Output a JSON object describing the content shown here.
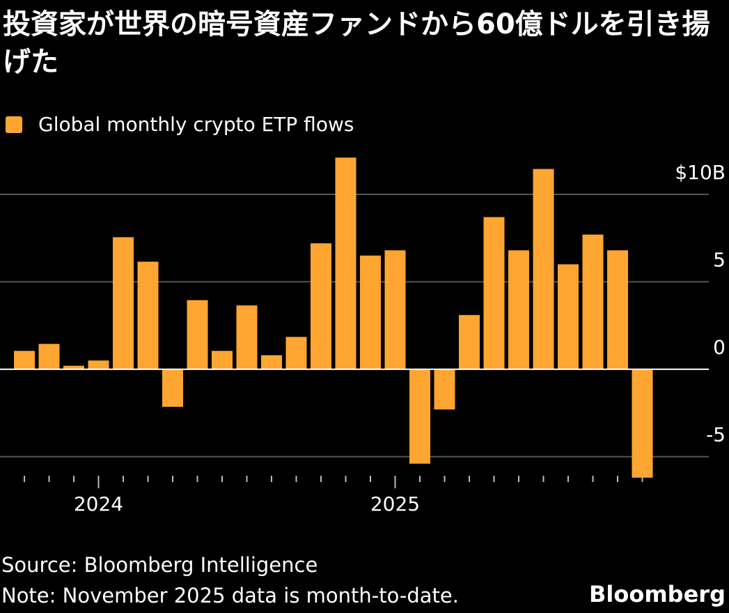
{
  "chart_data": {
    "type": "bar",
    "title": "投資家が世界の暗号資産ファンドから60億ドルを引き揚げた",
    "categories": [
      null,
      null,
      null,
      "2024",
      null,
      null,
      null,
      null,
      null,
      null,
      null,
      null,
      null,
      null,
      null,
      "2025",
      null,
      null,
      null,
      null,
      null,
      null,
      null,
      null,
      null,
      null
    ],
    "series": [
      {
        "name": "Global monthly crypto ETP flows",
        "color": "#ffa531",
        "values": [
          1.05,
          1.45,
          0.2,
          0.5,
          7.55,
          6.15,
          -2.15,
          3.95,
          1.05,
          3.65,
          0.8,
          1.85,
          7.2,
          12.1,
          6.5,
          6.8,
          -5.4,
          -2.3,
          3.1,
          8.7,
          6.8,
          11.45,
          6.0,
          7.7,
          6.8,
          -6.2
        ]
      }
    ],
    "ylim": [
      -6.25,
      12.15
    ],
    "yticks": [
      -5,
      0,
      5,
      {
        "value": 10,
        "label": "$10B"
      }
    ],
    "grid": true,
    "source": "Source: Bloomberg Intelligence",
    "note": "Note: November 2025 data is month-to-date.",
    "brand": "Bloomberg"
  }
}
